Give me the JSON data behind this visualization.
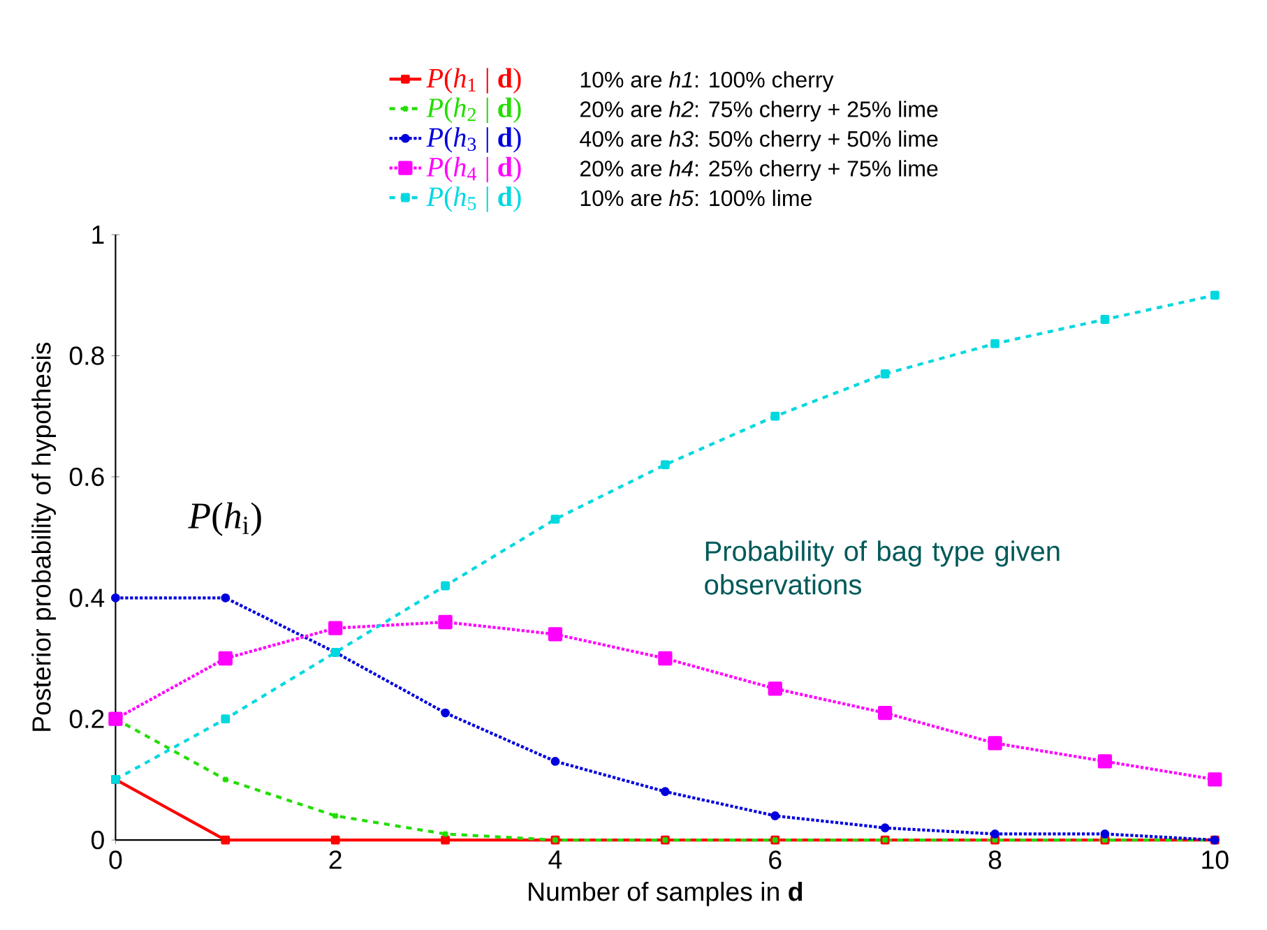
{
  "chart_data": {
    "type": "line",
    "xlabel": "Number of samples in **d**",
    "ylabel": "Posterior probability of hypothesis",
    "x": [
      0,
      1,
      2,
      3,
      4,
      5,
      6,
      7,
      8,
      9,
      10
    ],
    "xlim": [
      0,
      10
    ],
    "xticks": [
      0,
      2,
      4,
      6,
      8,
      10
    ],
    "ylim": [
      0,
      1
    ],
    "yticks": [
      0,
      0.2,
      0.4,
      0.6,
      0.8,
      1
    ],
    "legend": "top",
    "series": [
      {
        "name": "*P*(*h*$_{1}$ | **d**)",
        "color": "#ff0000",
        "marker": "square",
        "line_style": "solid",
        "values": [
          0.1,
          0,
          0,
          0,
          0,
          0,
          0,
          0,
          0,
          0,
          0
        ]
      },
      {
        "name": "*P*(*h*$_{2}$ | **d**)",
        "color": "#22dd00",
        "marker": "cross",
        "line_style": "dashed",
        "values": [
          0.2,
          0.1,
          0.04,
          0.01,
          0,
          0,
          0,
          0,
          0,
          0,
          0
        ]
      },
      {
        "name": "*P*(*h*$_{3}$ | **d**)",
        "color": "#0000dd",
        "marker": "circle",
        "line_style": "dotted",
        "values": [
          0.4,
          0.4,
          0.31,
          0.21,
          0.13,
          0.08,
          0.04,
          0.02,
          0.01,
          0.01,
          0
        ]
      },
      {
        "name": "*P*(*h*$_{4}$ | **d**)",
        "color": "#ff00ff",
        "marker": "square",
        "line_style": "dotted",
        "values": [
          0.2,
          0.3,
          0.35,
          0.36,
          0.34,
          0.3,
          0.25,
          0.21,
          0.16,
          0.13,
          0.1
        ]
      },
      {
        "name": "*P*(*h*$_{5}$ | **d**)",
        "color": "#00d8e0",
        "marker": "square",
        "line_style": "dashed",
        "values": [
          0.1,
          0.2,
          0.31,
          0.42,
          0.53,
          0.62,
          0.7,
          0.77,
          0.82,
          0.86,
          0.9
        ]
      }
    ],
    "annotations": [
      "10% are *h1*: 100% cherry",
      "20% are *h2*: 75% cherry + 25% lime",
      "40% are *h3*: 50% cherry + 50% lime",
      "20% are *h4*: 25% cherry + 75% lime",
      "10% are *h5*: 100% lime",
      "Probability of bag type given observations",
      "*P*(*h*$_{i}$)"
    ]
  }
}
